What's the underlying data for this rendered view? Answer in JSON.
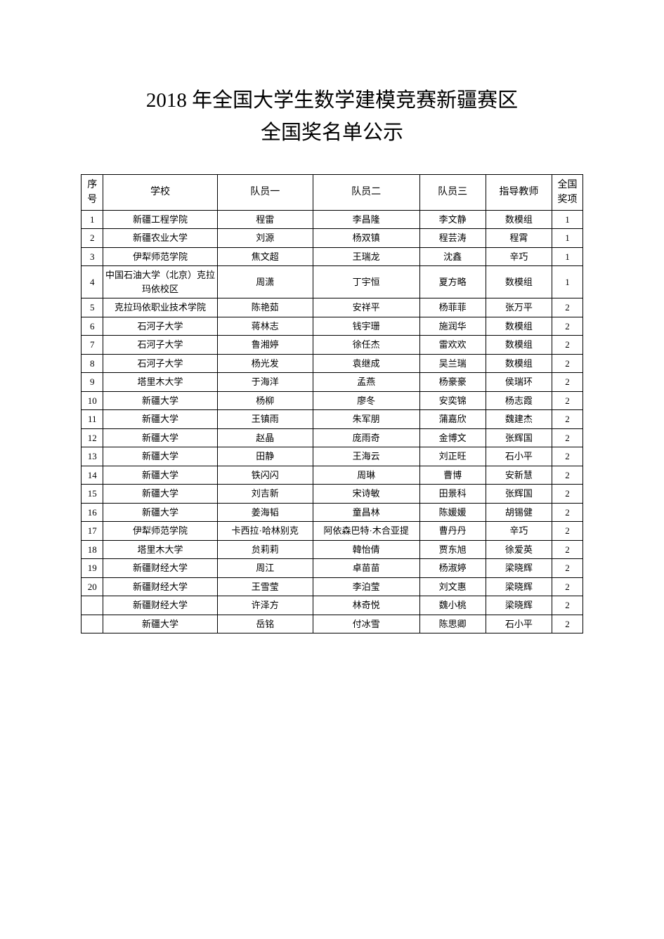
{
  "title": {
    "line1": "2018 年全国大学生数学建模竞赛新疆赛区",
    "line2": "全国奖名单公示"
  },
  "table": {
    "headers": {
      "seq": "序号",
      "school": "学校",
      "member1": "队员一",
      "member2": "队员二",
      "member3": "队员三",
      "teacher": "指导教师",
      "award": "全国奖项"
    },
    "rows": [
      {
        "seq": "1",
        "school": "新疆工程学院",
        "m1": "程雷",
        "m2": "李昌隆",
        "m3": "李文静",
        "teacher": "数模组",
        "award": "1"
      },
      {
        "seq": "2",
        "school": "新疆农业大学",
        "m1": "刘源",
        "m2": "杨双镇",
        "m3": "程芸涛",
        "teacher": "程霄",
        "award": "1"
      },
      {
        "seq": "3",
        "school": "伊犁师范学院",
        "m1": "焦文超",
        "m2": "王瑞龙",
        "m3": "沈鑫",
        "teacher": "辛巧",
        "award": "1"
      },
      {
        "seq": "4",
        "school": "中国石油大学（北京）克拉玛依校区",
        "m1": "周潇",
        "m2": "丁宇恒",
        "m3": "夏方略",
        "teacher": "数模组",
        "award": "1"
      },
      {
        "seq": "5",
        "school": "克拉玛依职业技术学院",
        "m1": "陈艳茹",
        "m2": "安祥平",
        "m3": "杨菲菲",
        "teacher": "张万平",
        "award": "2"
      },
      {
        "seq": "6",
        "school": "石河子大学",
        "m1": "蒋林志",
        "m2": "钱宇珊",
        "m3": "施润华",
        "teacher": "数模组",
        "award": "2"
      },
      {
        "seq": "7",
        "school": "石河子大学",
        "m1": "鲁湘婷",
        "m2": "徐任杰",
        "m3": "雷欢欢",
        "teacher": "数模组",
        "award": "2"
      },
      {
        "seq": "8",
        "school": "石河子大学",
        "m1": "杨光发",
        "m2": "袁继成",
        "m3": "吴兰瑞",
        "teacher": "数模组",
        "award": "2"
      },
      {
        "seq": "9",
        "school": "塔里木大学",
        "m1": "于海洋",
        "m2": "孟燕",
        "m3": "杨豪豪",
        "teacher": "侯瑞环",
        "award": "2"
      },
      {
        "seq": "10",
        "school": "新疆大学",
        "m1": "杨柳",
        "m2": "廖冬",
        "m3": "安奕锦",
        "teacher": "杨志霞",
        "award": "2"
      },
      {
        "seq": "11",
        "school": "新疆大学",
        "m1": "王镇雨",
        "m2": "朱军朋",
        "m3": "蒲嘉欣",
        "teacher": "魏建杰",
        "award": "2"
      },
      {
        "seq": "12",
        "school": "新疆大学",
        "m1": "赵晶",
        "m2": "庞雨奇",
        "m3": "金博文",
        "teacher": "张辉国",
        "award": "2"
      },
      {
        "seq": "13",
        "school": "新疆大学",
        "m1": "田静",
        "m2": "王海云",
        "m3": "刘正旺",
        "teacher": "石小平",
        "award": "2"
      },
      {
        "seq": "14",
        "school": "新疆大学",
        "m1": "铁闪闪",
        "m2": "周琳",
        "m3": "曹博",
        "teacher": "安新慧",
        "award": "2"
      },
      {
        "seq": "15",
        "school": "新疆大学",
        "m1": "刘吉新",
        "m2": "宋诗敏",
        "m3": "田景科",
        "teacher": "张辉国",
        "award": "2"
      },
      {
        "seq": "16",
        "school": "新疆大学",
        "m1": "姜海韬",
        "m2": "童昌林",
        "m3": "陈媛媛",
        "teacher": "胡锡健",
        "award": "2"
      },
      {
        "seq": "17",
        "school": "伊犁师范学院",
        "m1": "卡西拉·哈林别克",
        "m2": "阿依森巴特·木合亚提",
        "m3": "曹丹丹",
        "teacher": "辛巧",
        "award": "2"
      },
      {
        "seq": "18",
        "school": "塔里木大学",
        "m1": "贠莉莉",
        "m2": "韓怡倩",
        "m3": "贾东旭",
        "teacher": "徐爱英",
        "award": "2"
      },
      {
        "seq": "19",
        "school": "新疆财经大学",
        "m1": "周江",
        "m2": "卓苗苗",
        "m3": "杨淑婷",
        "teacher": "梁晓辉",
        "award": "2"
      },
      {
        "seq": "20",
        "school": "新疆财经大学",
        "m1": "王雪莹",
        "m2": "李泊莹",
        "m3": "刘文惠",
        "teacher": "梁晓辉",
        "award": "2"
      },
      {
        "seq": "",
        "school": "新疆财经大学",
        "m1": "许泽方",
        "m2": "林奇悦",
        "m3": "魏小桃",
        "teacher": "梁晓辉",
        "award": "2"
      },
      {
        "seq": "",
        "school": "新疆大学",
        "m1": "岳铭",
        "m2": "付冰雪",
        "m3": "陈思卿",
        "teacher": "石小平",
        "award": "2"
      }
    ]
  },
  "colors": {
    "background": "#ffffff",
    "text": "#000000",
    "border": "#000000"
  },
  "fonts": {
    "title_size_pt": 22,
    "body_size_pt": 10,
    "family": "SimSun"
  }
}
